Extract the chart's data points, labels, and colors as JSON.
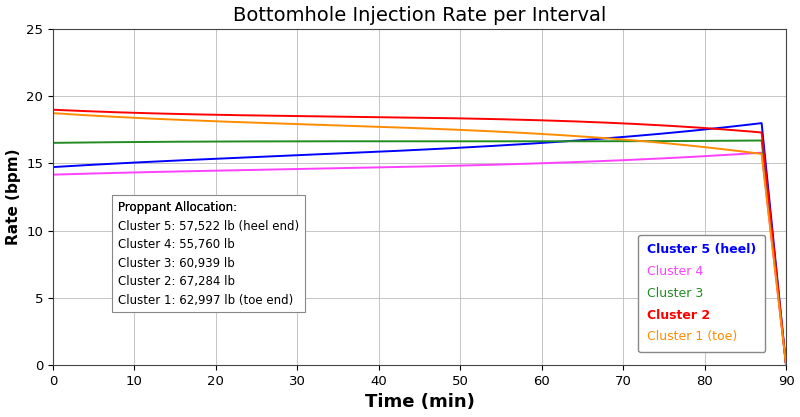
{
  "title": "Bottomhole Injection Rate per Interval",
  "xlabel": "Time (min)",
  "ylabel": "Rate (bpm)",
  "xlim": [
    0,
    90
  ],
  "ylim": [
    0,
    25
  ],
  "xticks": [
    0,
    10,
    20,
    30,
    40,
    50,
    60,
    70,
    80,
    90
  ],
  "yticks": [
    0,
    5,
    10,
    15,
    20,
    25
  ],
  "cluster5": {
    "label": "Cluster 5 (heel)",
    "color": "#0000FF",
    "bold": true,
    "start": 14.8,
    "mid1": 14.8,
    "mid2": 16.5,
    "end": 18.0,
    "drop": 0.0
  },
  "cluster4": {
    "label": "Cluster 4",
    "color": "#FF40FF",
    "bold": false,
    "start": 14.2,
    "mid1": 14.2,
    "mid2": 15.0,
    "end": 15.8,
    "drop": 0.0
  },
  "cluster3": {
    "label": "Cluster 3",
    "color": "#228B22",
    "bold": false,
    "start": 16.5,
    "mid1": 16.6,
    "mid2": 16.65,
    "end": 16.7,
    "drop": 0.0
  },
  "cluster2": {
    "label": "Cluster 2",
    "color": "#FF0000",
    "bold": true,
    "start": 19.0,
    "mid1": 18.85,
    "mid2": 18.2,
    "end": 17.3,
    "drop": 0.0
  },
  "cluster1": {
    "label": "Cluster 1 (toe)",
    "color": "#FF8C00",
    "bold": false,
    "start": 18.7,
    "mid1": 18.6,
    "mid2": 17.2,
    "end": 15.7,
    "drop": 0.0
  },
  "legend_order": [
    "cluster5",
    "cluster4",
    "cluster3",
    "cluster2",
    "cluster1"
  ],
  "ann_title": "Proppant Allocation:",
  "ann_lines": [
    "Cluster 5: 57,522 lb (heel end)",
    "Cluster 4: 55,760 lb",
    "Cluster 3: 60,939 lb",
    "Cluster 2: 67,284 lb",
    "Cluster 1: 62,997 lb (toe end)"
  ],
  "bg_color": "#FFFFFF",
  "grid_color": "#BBBBBB",
  "fig_width": 8.0,
  "fig_height": 4.17,
  "dpi": 100
}
